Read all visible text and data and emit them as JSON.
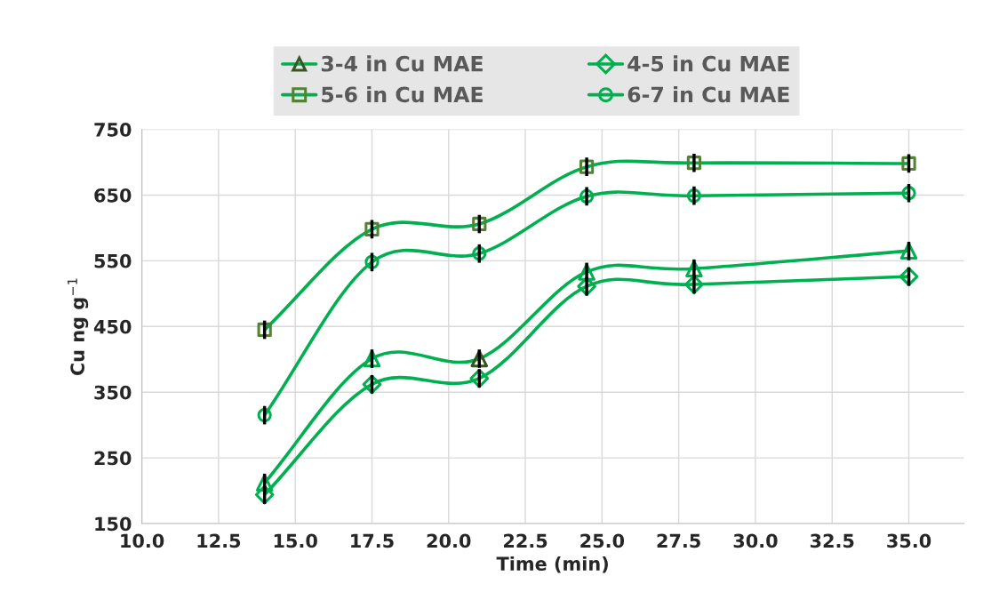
{
  "chart_data": {
    "type": "line",
    "xlabel": "Time (min)",
    "ylabel": "Cu ng g$^{−1}$",
    "x": [
      14,
      17.5,
      21,
      24.5,
      28,
      35
    ],
    "xlim": [
      10,
      36.8
    ],
    "xticks": [
      {
        "value": 10,
        "label": "10.0"
      },
      {
        "value": 12.5,
        "label": "12.5"
      },
      {
        "value": 15,
        "label": "15.0"
      },
      {
        "value": 17.5,
        "label": "17.5"
      },
      {
        "value": 20,
        "label": "20.0"
      },
      {
        "value": 22.5,
        "label": "22.5"
      },
      {
        "value": 25,
        "label": "25.0"
      },
      {
        "value": 27.5,
        "label": "27.5"
      },
      {
        "value": 30,
        "label": "30.0"
      },
      {
        "value": 32.5,
        "label": "32.5"
      },
      {
        "value": 35,
        "label": "35.0"
      }
    ],
    "ylim": [
      150,
      750
    ],
    "yticks": [
      150,
      250,
      350,
      450,
      550,
      650,
      750
    ],
    "grid": true,
    "legend": "top",
    "line_style": "solid",
    "series": [
      {
        "name": "3-4 in Cu MAE",
        "color": "#00b050",
        "marker": "triangle",
        "colors": [
          "#00b050",
          "#00b050",
          "#375623",
          "#00b050",
          "#00b050",
          "#00b050"
        ],
        "values": [
          212,
          401,
          401,
          533,
          538,
          565
        ],
        "errors": [
          14,
          14,
          14,
          14,
          14,
          14
        ]
      },
      {
        "name": "4-5 in Cu MAE",
        "color": "#00b050",
        "marker": "diamond",
        "colors": [
          "#00b050",
          "#00b050",
          "#00b050",
          "#00b050",
          "#00b050",
          "#00b050"
        ],
        "values": [
          194,
          362,
          371,
          511,
          514,
          526
        ],
        "errors": [
          14,
          14,
          14,
          14,
          14,
          14
        ]
      },
      {
        "name": "5-6 in Cu MAE",
        "color": "#00b050",
        "marker": "square",
        "colors": [
          "#548235",
          "#548235",
          "#548235",
          "#548235",
          "#548235",
          "#548235"
        ],
        "values": [
          445,
          598,
          606,
          693,
          699,
          698
        ],
        "errors": [
          14,
          14,
          14,
          14,
          14,
          14
        ]
      },
      {
        "name": "6-7 in Cu MAE",
        "color": "#00b050",
        "marker": "circle",
        "colors": [
          "#00b050",
          "#00b050",
          "#00b050",
          "#00b050",
          "#00b050",
          "#00b050"
        ],
        "values": [
          315,
          548,
          561,
          648,
          649,
          653
        ],
        "errors": [
          14,
          14,
          14,
          14,
          14,
          14
        ]
      }
    ]
  }
}
